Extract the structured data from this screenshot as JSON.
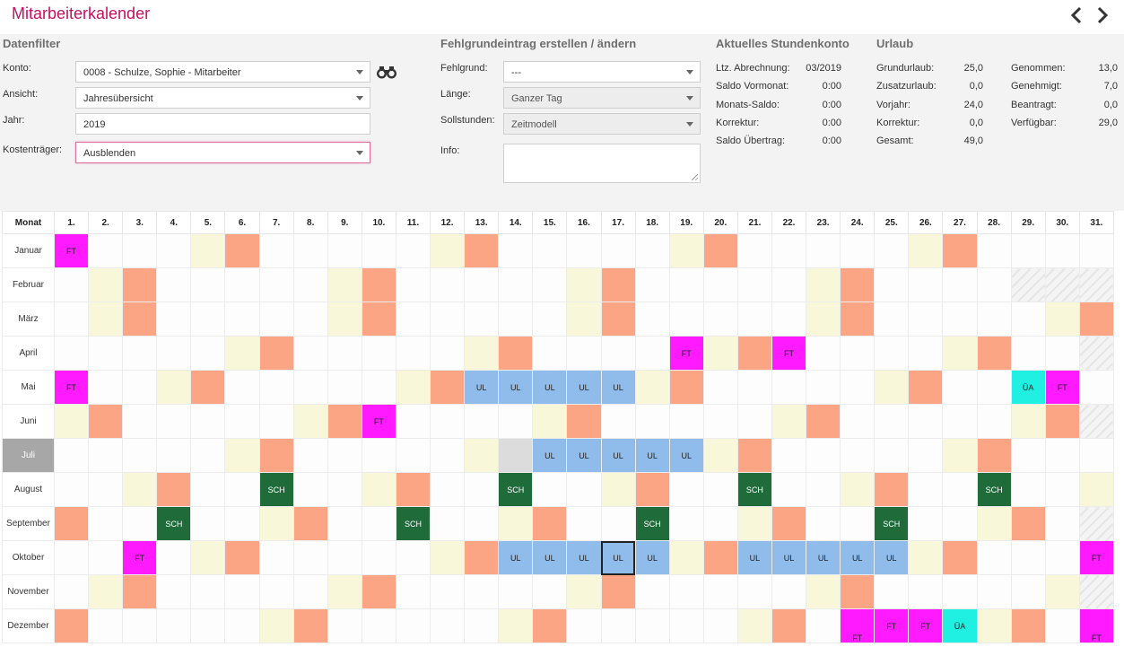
{
  "app": {
    "title": "Mitarbeiterkalender"
  },
  "filter": {
    "title": "Datenfilter",
    "konto_label": "Konto:",
    "konto_value": "0008 - Schulze, Sophie - Mitarbeiter",
    "ansicht_label": "Ansicht:",
    "ansicht_value": "Jahresübersicht",
    "jahr_label": "Jahr:",
    "jahr_value": "2019",
    "kostentraeger_label": "Kostenträger:",
    "kostentraeger_value": "Ausblenden"
  },
  "fehlgrund": {
    "title": "Fehlgrundeintrag erstellen / ändern",
    "fehlgrund_label": "Fehlgrund:",
    "fehlgrund_value": "---",
    "laenge_label": "Länge:",
    "laenge_value": "Ganzer Tag",
    "soll_label": "Sollstunden:",
    "soll_value": "Zeitmodell",
    "info_label": "Info:",
    "info_value": ""
  },
  "stundenkonto": {
    "title": "Aktuelles Stundenkonto",
    "rows": [
      {
        "label": "Ltz. Abrechnung:",
        "value": "03/2019"
      },
      {
        "label": "Saldo Vormonat:",
        "value": "0:00"
      },
      {
        "label": "Monats-Saldo:",
        "value": "0:00"
      },
      {
        "label": "Korrektur:",
        "value": "0:00"
      },
      {
        "label": "Saldo Übertrag:",
        "value": "0:00"
      }
    ]
  },
  "urlaub": {
    "title": "Urlaub",
    "left": [
      {
        "label": "Grundurlaub:",
        "value": "25,0"
      },
      {
        "label": "Zusatzurlaub:",
        "value": "0,0"
      },
      {
        "label": "Vorjahr:",
        "value": "24,0"
      },
      {
        "label": "Korrektur:",
        "value": "0,0"
      },
      {
        "label": "Gesamt:",
        "value": "49,0"
      }
    ],
    "right": [
      {
        "label": "Genommen:",
        "value": "13,0"
      },
      {
        "label": "Genehmigt:",
        "value": "7,0"
      },
      {
        "label": "Beantragt:",
        "value": "0,0"
      },
      {
        "label": "Verfügbar:",
        "value": "29,0"
      }
    ]
  },
  "calendar": {
    "month_header": "Monat",
    "day_suffix": ".",
    "current_month_index": 6,
    "selected": {
      "month": 9,
      "day": 17
    },
    "colors": {
      "saturday": "#f8f7d9",
      "sunday": "#fba584",
      "feiertag": "#ff1aff",
      "urlaub": "#8fbcea",
      "schule": "#1f6b3a",
      "ueberstundenabbau": "#1ff0e2"
    },
    "months": [
      {
        "name": "Januar",
        "days": 31,
        "first_weekday": 1,
        "entries": {
          "1": "FT"
        }
      },
      {
        "name": "Februar",
        "days": 28,
        "first_weekday": 4,
        "entries": {}
      },
      {
        "name": "März",
        "days": 31,
        "first_weekday": 4,
        "entries": {}
      },
      {
        "name": "April",
        "days": 30,
        "first_weekday": 0,
        "entries": {
          "19": "FT",
          "22": "FT"
        }
      },
      {
        "name": "Mai",
        "days": 31,
        "first_weekday": 2,
        "entries": {
          "1": "FT",
          "13": "UL",
          "14": "UL",
          "15": "UL",
          "16": "UL",
          "17": "UL",
          "29": "ÜA",
          "30": "FT"
        }
      },
      {
        "name": "Juni",
        "days": 30,
        "first_weekday": 5,
        "entries": {
          "10": "FT"
        }
      },
      {
        "name": "Juli",
        "days": 31,
        "first_weekday": 0,
        "entries": {
          "14": "",
          "15": "UL",
          "16": "UL",
          "17": "UL",
          "18": "UL",
          "19": "UL"
        }
      },
      {
        "name": "August",
        "days": 31,
        "first_weekday": 3,
        "entries": {
          "7": "SCH",
          "14": "SCH",
          "21": "SCH",
          "28": "SCH"
        }
      },
      {
        "name": "September",
        "days": 30,
        "first_weekday": 6,
        "entries": {
          "4": "SCH",
          "11": "SCH",
          "18": "SCH",
          "25": "SCH"
        }
      },
      {
        "name": "Oktober",
        "days": 31,
        "first_weekday": 1,
        "entries": {
          "3": "FT",
          "14": "UL",
          "15": "UL",
          "16": "UL",
          "17": "UL",
          "18": "UL",
          "21": "UL",
          "22": "UL",
          "23": "UL",
          "24": "UL",
          "25": "UL",
          "31": "FT"
        }
      },
      {
        "name": "November",
        "days": 30,
        "first_weekday": 4,
        "entries": {}
      },
      {
        "name": "Dezember",
        "days": 31,
        "first_weekday": 6,
        "entries": {
          "24": "FT",
          "25": "FT",
          "26": "FT",
          "27": "ÜA",
          "31": "FT"
        }
      }
    ]
  }
}
